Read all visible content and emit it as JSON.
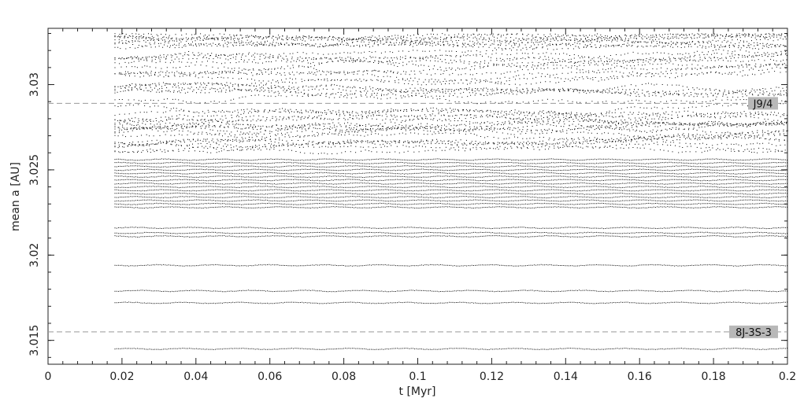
{
  "chart_data": {
    "type": "scatter",
    "title": "",
    "xlabel": "t [Myr]",
    "ylabel": "mean a [AU]",
    "xlim": [
      0,
      0.2
    ],
    "ylim": [
      3.0136,
      3.0333
    ],
    "x_ticks": [
      0,
      0.02,
      0.04,
      0.06,
      0.08,
      0.1,
      0.12,
      0.14,
      0.16,
      0.18,
      0.2
    ],
    "x_tick_labels": [
      "0",
      "0.02",
      "0.04",
      "0.06",
      "0.08",
      "0.1",
      "0.12",
      "0.14",
      "0.16",
      "0.18",
      "0.2"
    ],
    "y_ticks": [
      3.015,
      3.02,
      3.025,
      3.03
    ],
    "y_tick_labels": [
      "3.015",
      "3.02",
      "3.025",
      "3.03"
    ],
    "grid": false,
    "marker_color": "#000000",
    "reference_lines": [
      {
        "label": "J9/4",
        "y": 3.0289,
        "color": "#999999",
        "style": "dashed"
      },
      {
        "label": "8J-3S-3",
        "y": 3.0155,
        "color": "#999999",
        "style": "dashed"
      }
    ],
    "series_time_range": [
      0.018,
      0.2
    ],
    "stable_orbit_a_values": [
      3.0145,
      3.0172,
      3.0179,
      3.0194,
      3.0211,
      3.0213,
      3.0216,
      3.0228,
      3.023,
      3.0232,
      3.0234,
      3.0236,
      3.0238,
      3.024,
      3.0242,
      3.0244,
      3.0246,
      3.0248,
      3.025,
      3.0252,
      3.0254,
      3.0256
    ],
    "chaotic_band_range": [
      3.0258,
      3.033
    ]
  }
}
